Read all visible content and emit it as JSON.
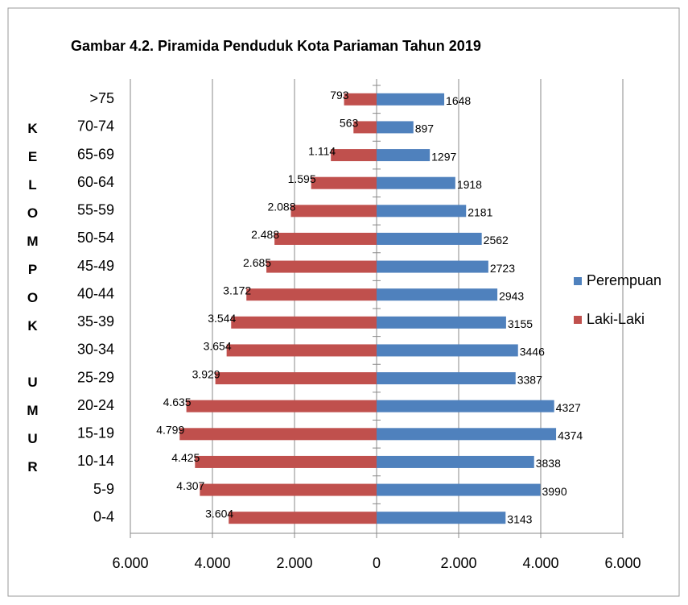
{
  "chart_data": {
    "type": "pyramid",
    "title": "Gambar 4.2. Piramida Penduduk Kota Pariaman Tahun 2019",
    "y_label": "KELOMPOK UMUR",
    "categories": [
      ">75",
      "70-74",
      "65-69",
      "60-64",
      "55-59",
      "50-54",
      "45-49",
      "40-44",
      "35-39",
      "30-34",
      "25-29",
      "20-24",
      "15-19",
      "10-14",
      "5-9",
      "0-4"
    ],
    "series": [
      {
        "name": "Perempuan",
        "color": "#4f81bd",
        "values": [
          1648,
          897,
          1297,
          1918,
          2181,
          2562,
          2723,
          2943,
          3155,
          3446,
          3387,
          4327,
          4374,
          3838,
          3990,
          3143
        ]
      },
      {
        "name": "Laki-Laki",
        "color": "#c0504d",
        "values": [
          -793,
          -563,
          -1114,
          -1595,
          -2088,
          -2488,
          -2685,
          -3172,
          -3544,
          -3654,
          -3929,
          -4635,
          -4799,
          -4425,
          -4307,
          -3604
        ],
        "value_labels": [
          "793",
          "563",
          "1.114",
          "1.595",
          "2.088",
          "2.488",
          "2.685",
          "3.172",
          "3.544",
          "3.654",
          "3.929",
          "4.635",
          "4.799",
          "4.425",
          "4.307",
          "3.604"
        ]
      }
    ],
    "xlim": [
      -6000,
      6000
    ],
    "xticks": [
      {
        "value": -6000,
        "label": "6.000"
      },
      {
        "value": -4000,
        "label": "4.000"
      },
      {
        "value": -2000,
        "label": "2.000"
      },
      0,
      {
        "value": 2000,
        "label": "2.000"
      },
      {
        "value": 4000,
        "label": "4.000"
      },
      {
        "value": 6000,
        "label": "6.000"
      }
    ],
    "negative_tick_color": "#ff0000",
    "grid": true,
    "legend": "right"
  }
}
